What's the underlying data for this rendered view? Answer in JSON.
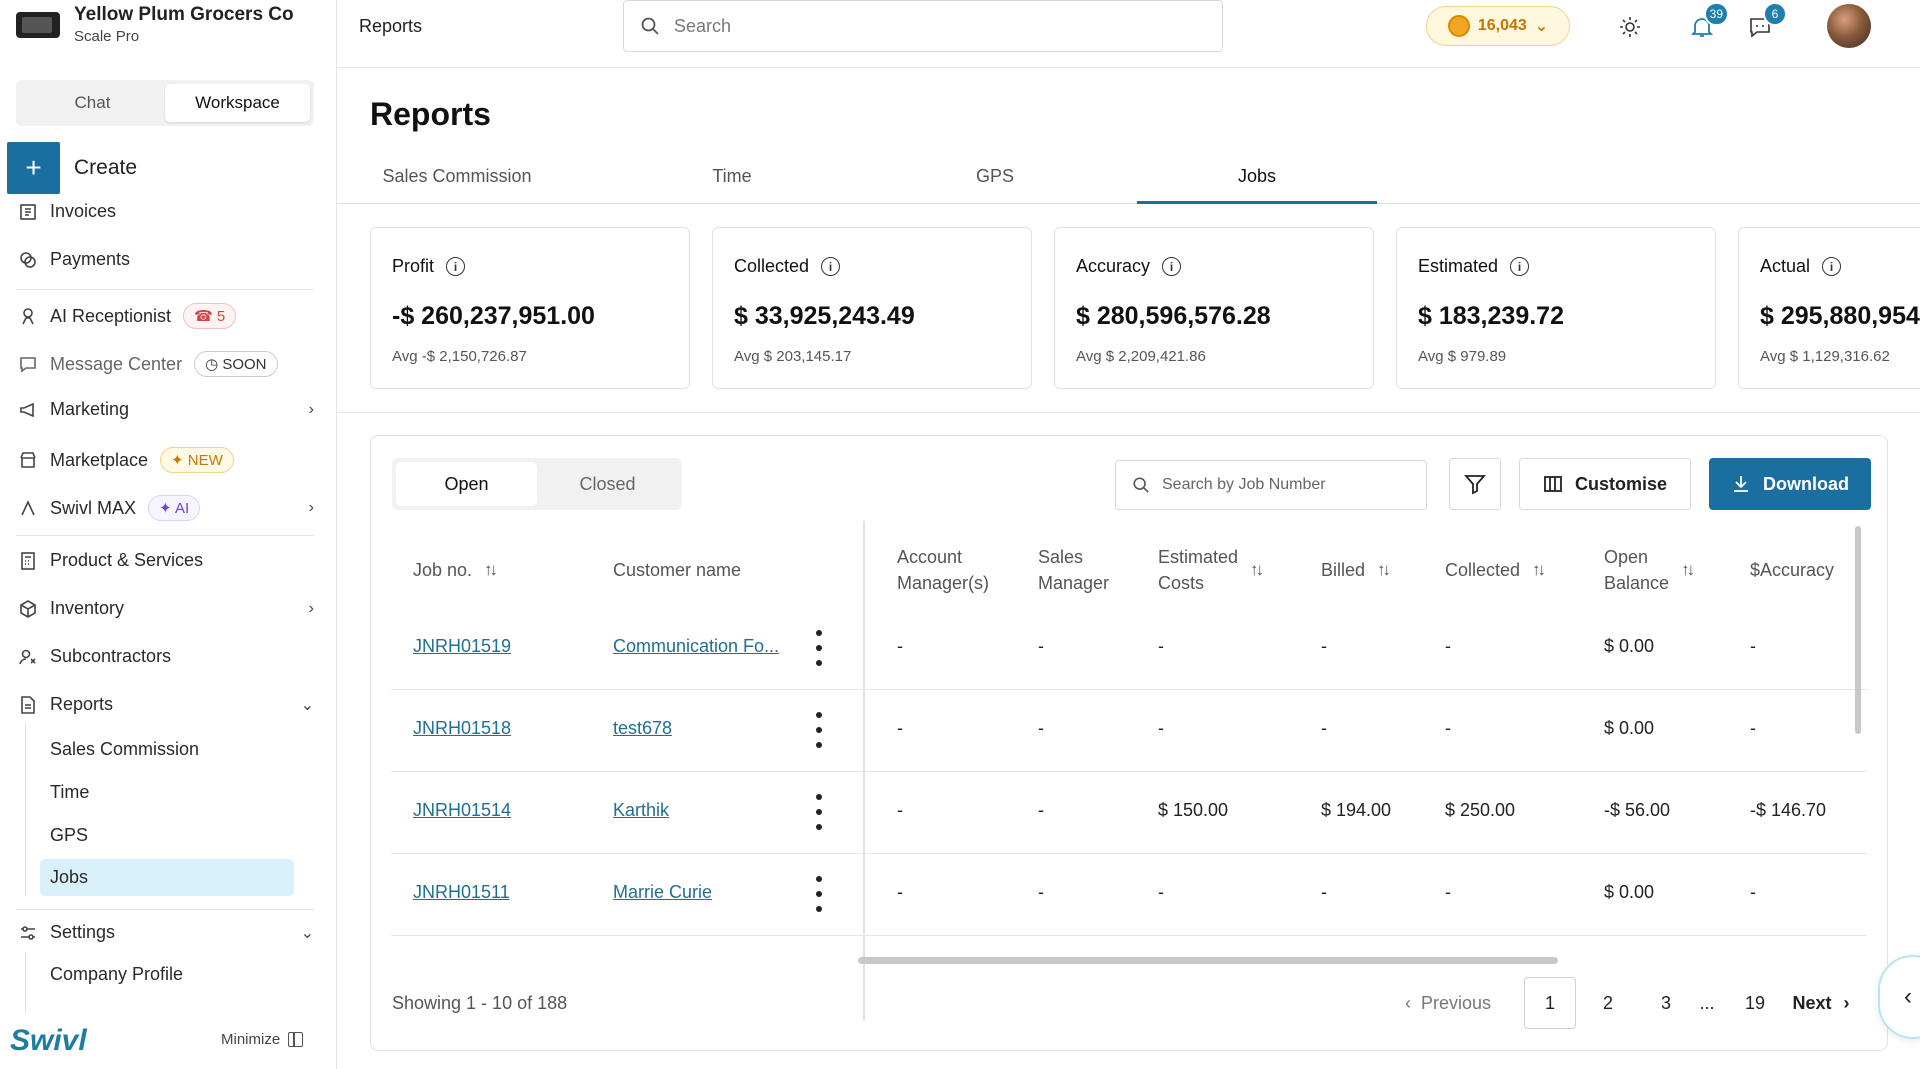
{
  "company": {
    "name": "Yellow Plum Grocers Co",
    "plan": "Scale Pro"
  },
  "mode_tabs": [
    "Chat",
    "Workspace"
  ],
  "create_label": "Create",
  "nav": {
    "invoices": "Invoices",
    "payments": "Payments",
    "ai_receptionist": "AI Receptionist",
    "ai_receptionist_badge": "5",
    "message_center": "Message Center",
    "message_center_badge": "SOON",
    "marketing": "Marketing",
    "marketplace": "Marketplace",
    "marketplace_badge": "NEW",
    "swivl_max": "Swivl MAX",
    "swivl_max_badge": "AI",
    "product_services": "Product & Services",
    "inventory": "Inventory",
    "subcontractors": "Subcontractors",
    "reports": "Reports",
    "reports_sub": [
      "Sales Commission",
      "Time",
      "GPS",
      "Jobs"
    ],
    "settings": "Settings",
    "settings_sub": [
      "Company Profile"
    ]
  },
  "brand": "Swivl",
  "minimize_label": "Minimize",
  "topbar": {
    "breadcrumb": "Reports",
    "search_placeholder": "Search",
    "coins": "16,043",
    "notifications_count": "39",
    "messages_count": "6"
  },
  "page_title": "Reports",
  "report_tabs": [
    "Sales Commission",
    "Time",
    "GPS",
    "Jobs"
  ],
  "active_report_tab": "Jobs",
  "cards": [
    {
      "label": "Profit",
      "value": "-$ 260,237,951.00",
      "avg": "Avg -$ 2,150,726.87"
    },
    {
      "label": "Collected",
      "value": "$ 33,925,243.49",
      "avg": "Avg $ 203,145.17"
    },
    {
      "label": "Accuracy",
      "value": "$ 280,596,576.28",
      "avg": "Avg $ 2,209,421.86"
    },
    {
      "label": "Estimated",
      "value": "$ 183,239.72",
      "avg": "Avg $ 979.89"
    },
    {
      "label": "Actual",
      "value": "$ 295,880,954",
      "avg": "Avg $ 1,129,316.62"
    }
  ],
  "status_tabs": [
    "Open",
    "Closed"
  ],
  "job_search_placeholder": "Search by Job Number",
  "customise_label": "Customise",
  "download_label": "Download",
  "columns": {
    "job_no": "Job no.",
    "customer": "Customer name",
    "account_manager_1": "Account",
    "account_manager_2": "Manager(s)",
    "sales_manager_1": "Sales",
    "sales_manager_2": "Manager",
    "estimated_1": "Estimated",
    "estimated_2": "Costs",
    "billed": "Billed",
    "collected": "Collected",
    "open_balance_1": "Open",
    "open_balance_2": "Balance",
    "accuracy": "$Accuracy"
  },
  "rows": [
    {
      "job": "JNRH01519",
      "customer": "Communication Fo...",
      "account": "-",
      "sales": "-",
      "estimated": "-",
      "billed": "-",
      "collected": "-",
      "balance": "$ 0.00",
      "accuracy": "-"
    },
    {
      "job": "JNRH01518",
      "customer": "test678",
      "account": "-",
      "sales": "-",
      "estimated": "-",
      "billed": "-",
      "collected": "-",
      "balance": "$ 0.00",
      "accuracy": "-"
    },
    {
      "job": "JNRH01514",
      "customer": "Karthik",
      "account": "-",
      "sales": "-",
      "estimated": "$ 150.00",
      "billed": "$ 194.00",
      "collected": "$ 250.00",
      "balance": "-$ 56.00",
      "accuracy": "-$ 146.70"
    },
    {
      "job": "JNRH01511",
      "customer": "Marrie Curie",
      "account": "-",
      "sales": "-",
      "estimated": "-",
      "billed": "-",
      "collected": "-",
      "balance": "$ 0.00",
      "accuracy": "-"
    }
  ],
  "pagination": {
    "showing": "Showing 1 - 10 of 188",
    "previous": "Previous",
    "pages": [
      "1",
      "2",
      "3",
      "...",
      "19"
    ],
    "next": "Next"
  },
  "colors": {
    "accent": "#1a6ea0",
    "link": "#1f6f92",
    "active_nav": "#d8f1fb"
  }
}
